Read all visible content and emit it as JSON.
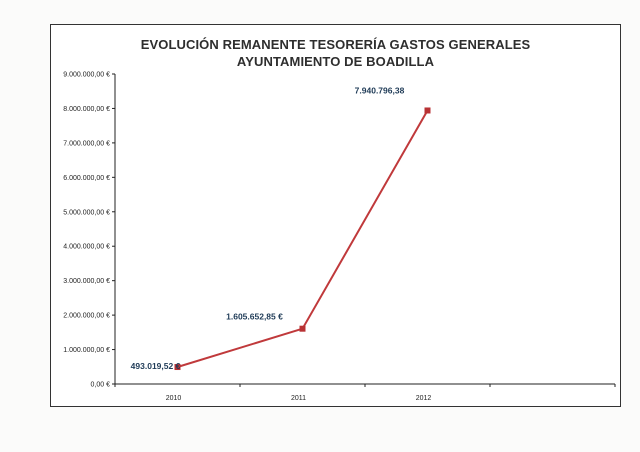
{
  "chart_data": {
    "type": "line",
    "title": "EVOLUCIÓN REMANENTE TESORERÍA GASTOS GENERALES",
    "subtitle": "AYUNTAMIENTO DE BOADILLA",
    "xlabel": "",
    "ylabel": "",
    "categories": [
      "2010",
      "2011",
      "2012"
    ],
    "series": [
      {
        "values": [
          493019.52,
          1605652.85,
          7940796.38
        ],
        "data_labels": [
          "493.019,52 €",
          "1.605.652,85 €",
          "7.940.796,38"
        ]
      }
    ],
    "ylim": [
      0,
      9000000
    ],
    "y_ticks": [
      0,
      1000000,
      2000000,
      3000000,
      4000000,
      5000000,
      6000000,
      7000000,
      8000000,
      9000000
    ],
    "y_tick_labels": [
      "0,00 €",
      "1.000.000,00 €",
      "2.000.000,00 €",
      "3.000.000,00 €",
      "4.000.000,00 €",
      "5.000.000,00 €",
      "6.000.000,00 €",
      "7.000.000,00 €",
      "8.000.000,00 €",
      "9.000.000,00 €"
    ],
    "grid": false,
    "legend": "none",
    "colors": {
      "line": "#c0393b",
      "marker": "#b83234",
      "data_label": "#1f3b57",
      "axis": "#222222"
    }
  }
}
